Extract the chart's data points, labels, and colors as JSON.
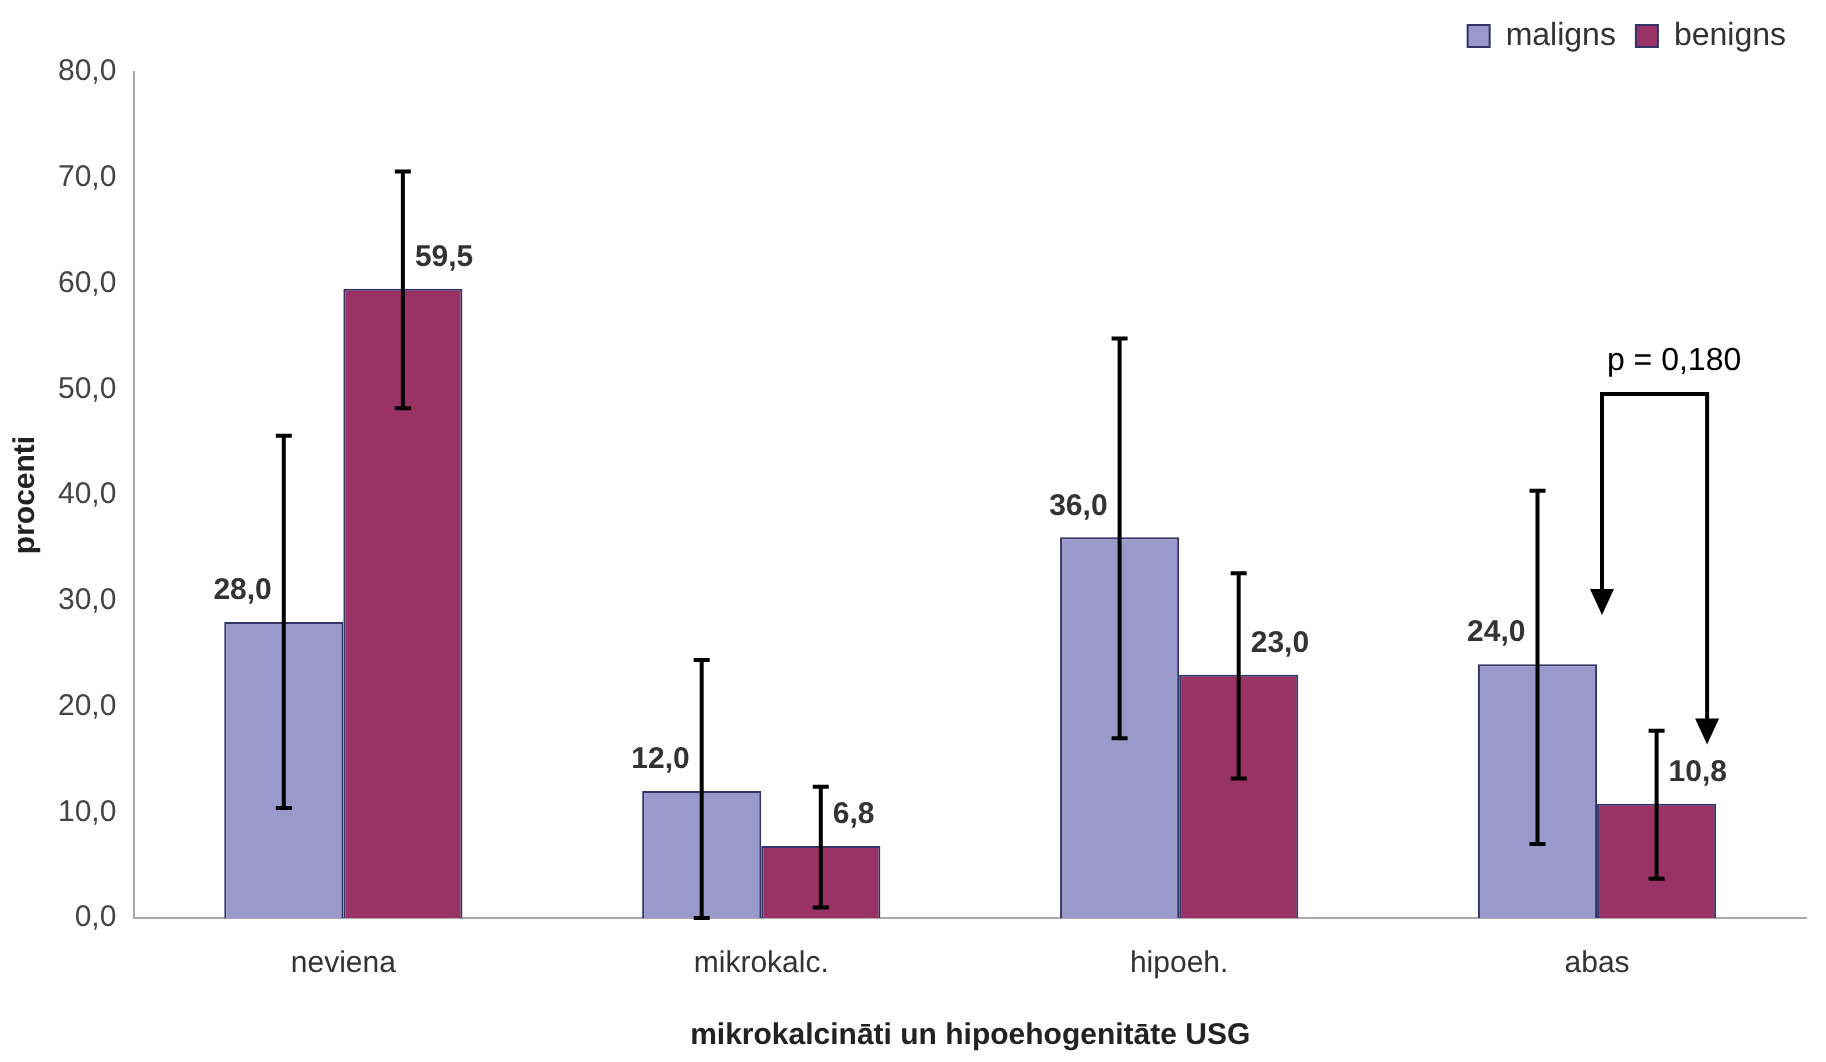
{
  "chart_data": {
    "type": "bar",
    "xlabel": "mikrokalcināti un hipoehogenitāte USG",
    "ylabel": "procenti",
    "categories": [
      "neviena",
      "mikrokalc.",
      "hipoeh.",
      "abas"
    ],
    "series": [
      {
        "name": "maligns",
        "color": "#9999cc",
        "values": [
          28.0,
          12.0,
          36.0,
          24.0
        ],
        "errors": [
          [
            10.4,
            45.6
          ],
          [
            0,
            24.4
          ],
          [
            17.0,
            54.8
          ],
          [
            7.0,
            40.4
          ]
        ],
        "value_labels": [
          "28,0",
          "12,0",
          "36,0",
          "24,0"
        ]
      },
      {
        "name": "benigns",
        "color": "#993366",
        "values": [
          59.5,
          6.8,
          23.0,
          10.8
        ],
        "errors": [
          [
            48.2,
            70.6
          ],
          [
            1.0,
            12.4
          ],
          [
            13.2,
            32.6
          ],
          [
            3.7,
            17.7
          ]
        ],
        "value_labels": [
          "59,5",
          "6,8",
          "23,0",
          "10,8"
        ]
      }
    ],
    "ylim": [
      0,
      80
    ],
    "yticks": [
      {
        "value": 0,
        "label": "0,0"
      },
      {
        "value": 10,
        "label": "10,0"
      },
      {
        "value": 20,
        "label": "20,0"
      },
      {
        "value": 30,
        "label": "30,0"
      },
      {
        "value": 40,
        "label": "40,0"
      },
      {
        "value": 50,
        "label": "50,0"
      },
      {
        "value": 60,
        "label": "60,0"
      },
      {
        "value": 70,
        "label": "70,0"
      },
      {
        "value": 80,
        "label": "80,0"
      }
    ],
    "legend": "top right",
    "grid": false,
    "annotations": [
      "p = 0,180"
    ]
  }
}
